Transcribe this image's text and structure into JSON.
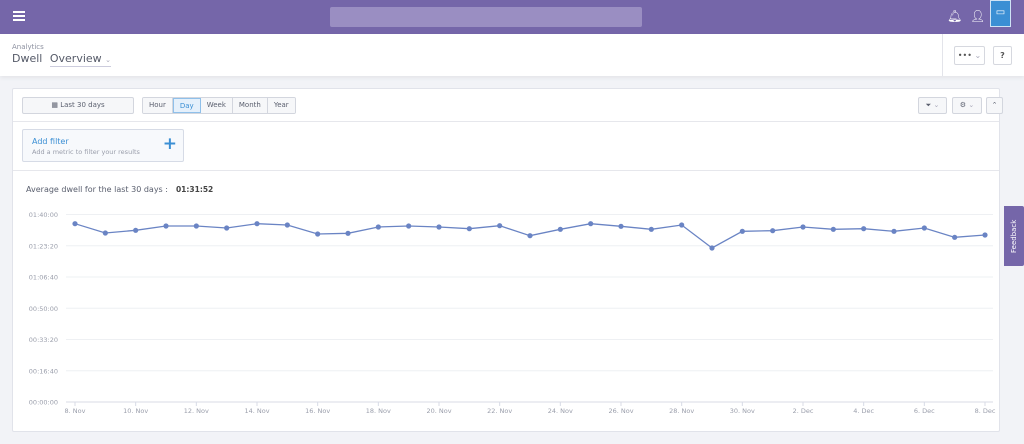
{
  "topbar": {
    "menu_icon": "hamburger-icon",
    "icons": [
      "bell-icon",
      "user-icon",
      "chat-icon"
    ],
    "color": "#7566a9"
  },
  "header": {
    "breadcrumb": "Analytics",
    "title": "Dwell",
    "view": "Overview",
    "more_label": "•••",
    "help_label": "?"
  },
  "toolbar": {
    "date_range": "Last 30 days",
    "granularity": [
      "Hour",
      "Day",
      "Week",
      "Month",
      "Year"
    ],
    "selected": "Day"
  },
  "filter": {
    "title": "Add filter",
    "subtitle": "Add a metric to filter your results",
    "plus": "+"
  },
  "summary": {
    "label": "Average dwell for the last 30 days :",
    "value": "01:31:52"
  },
  "feedback": "Feedback",
  "chart_data": {
    "type": "line",
    "x": [
      "8. Nov",
      "9. Nov",
      "10. Nov",
      "11. Nov",
      "12. Nov",
      "13. Nov",
      "14. Nov",
      "15. Nov",
      "16. Nov",
      "17. Nov",
      "18. Nov",
      "19. Nov",
      "20. Nov",
      "21. Nov",
      "22. Nov",
      "23. Nov",
      "24. Nov",
      "25. Nov",
      "26. Nov",
      "27. Nov",
      "28. Nov",
      "29. Nov",
      "30. Nov",
      "1. Dec",
      "2. Dec",
      "3. Dec",
      "4. Dec",
      "5. Dec",
      "6. Dec",
      "7. Dec",
      "8. Dec"
    ],
    "x_ticks": [
      "8. Nov",
      "10. Nov",
      "12. Nov",
      "14. Nov",
      "16. Nov",
      "18. Nov",
      "20. Nov",
      "22. Nov",
      "24. Nov",
      "26. Nov",
      "28. Nov",
      "30. Nov",
      "2. Dec",
      "4. Dec",
      "6. Dec",
      "8. Dec"
    ],
    "values": [
      "01:35:06",
      "01:30:08",
      "01:31:34",
      "01:33:52",
      "01:33:52",
      "01:32:48",
      "01:35:06",
      "01:34:24",
      "01:29:36",
      "01:29:58",
      "01:33:20",
      "01:33:52",
      "01:33:20",
      "01:32:26",
      "01:34:02",
      "01:28:42",
      "01:32:06",
      "01:35:06",
      "01:33:42",
      "01:32:06",
      "01:34:24",
      "01:22:08",
      "01:31:02",
      "01:31:22",
      "01:33:20",
      "01:32:06",
      "01:32:26",
      "01:31:02",
      "01:32:48",
      "01:27:50",
      "01:29:04"
    ],
    "y_ticks": [
      "00:00:00",
      "00:16:40",
      "00:33:20",
      "00:50:00",
      "01:06:40",
      "01:23:20",
      "01:40:00"
    ],
    "ylim": [
      "00:00:00",
      "01:40:00"
    ],
    "grid": true,
    "color": "#6a84c4"
  }
}
